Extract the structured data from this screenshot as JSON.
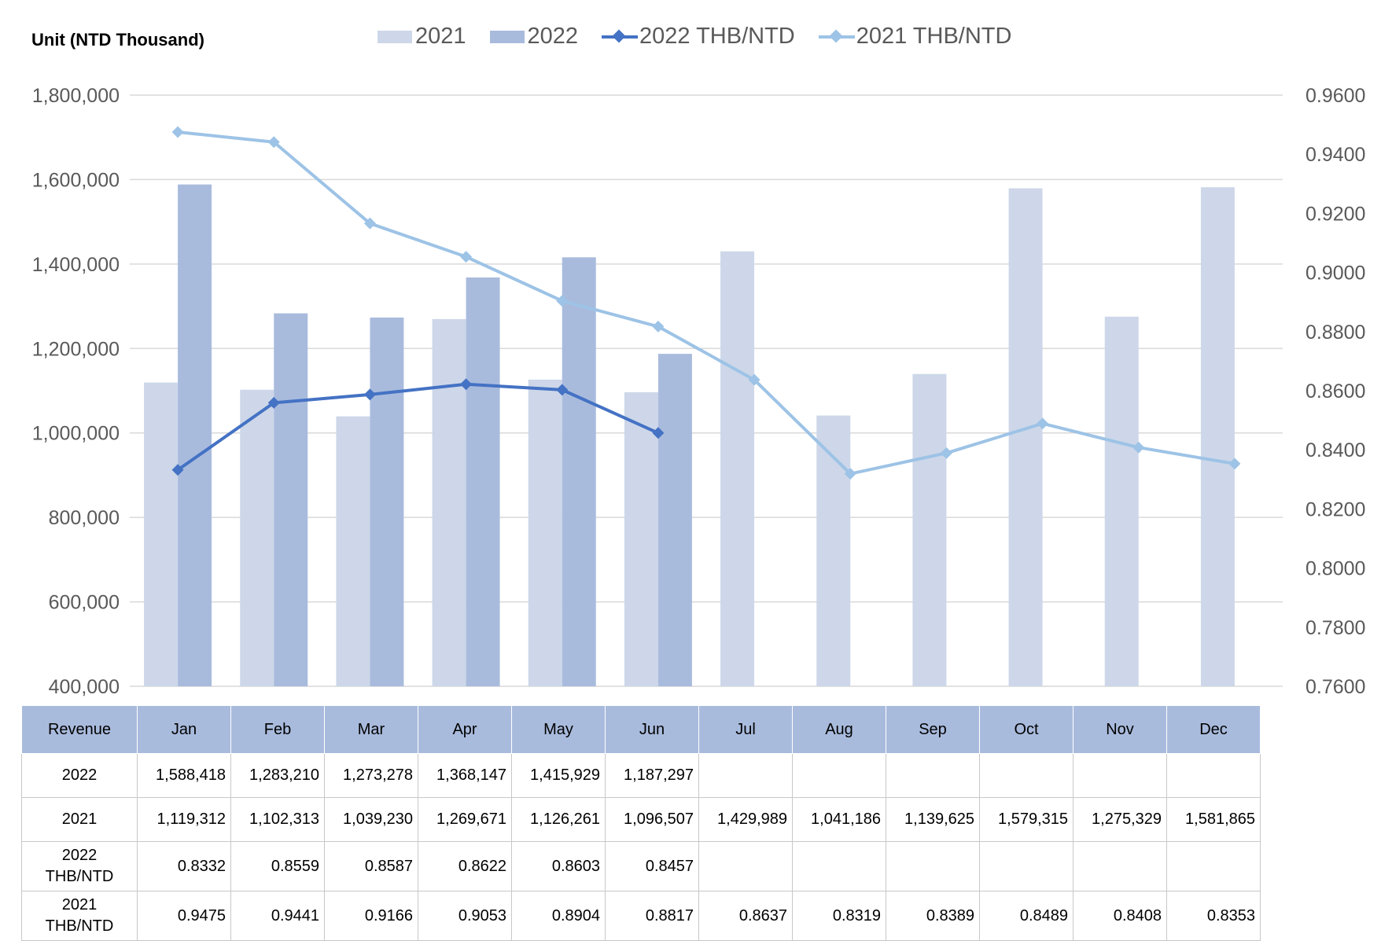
{
  "chart_data": {
    "type": "bar",
    "unit_label": "Unit (NTD  Thousand)",
    "categories": [
      "Jan",
      "Feb",
      "Mar",
      "Apr",
      "May",
      "Jun",
      "Jul",
      "Aug",
      "Sep",
      "Oct",
      "Nov",
      "Dec"
    ],
    "series": [
      {
        "name": "2021",
        "type": "bar",
        "axis": "left",
        "color": "#cdd7e9",
        "values": [
          1119312,
          1102313,
          1039230,
          1269671,
          1126261,
          1096507,
          1429989,
          1041186,
          1139625,
          1579315,
          1275329,
          1581865
        ]
      },
      {
        "name": "2022",
        "type": "bar",
        "axis": "left",
        "color": "#a9bbdd",
        "values": [
          1588418,
          1283210,
          1273278,
          1368147,
          1415929,
          1187297,
          null,
          null,
          null,
          null,
          null,
          null
        ]
      },
      {
        "name": "2022 THB/NTD",
        "type": "line",
        "axis": "right",
        "color": "#4472c4",
        "values": [
          0.8332,
          0.8559,
          0.8587,
          0.8622,
          0.8603,
          0.8457,
          null,
          null,
          null,
          null,
          null,
          null
        ]
      },
      {
        "name": "2021 THB/NTD",
        "type": "line",
        "axis": "right",
        "color": "#9dc3e6",
        "values": [
          0.9475,
          0.9441,
          0.9166,
          0.9053,
          0.8904,
          0.8817,
          0.8637,
          0.8319,
          0.8389,
          0.8489,
          0.8408,
          0.8353
        ]
      }
    ],
    "y_left": {
      "min": 400000,
      "max": 1800000,
      "ticks": [
        "400,000",
        "600,000",
        "800,000",
        "1,000,000",
        "1,200,000",
        "1,400,000",
        "1,600,000",
        "1,800,000"
      ]
    },
    "y_right": {
      "min": 0.76,
      "max": 0.96,
      "ticks": [
        "0.7600",
        "0.7800",
        "0.8000",
        "0.8200",
        "0.8400",
        "0.8600",
        "0.8800",
        "0.9000",
        "0.9200",
        "0.9400",
        "0.9600"
      ]
    },
    "grid": true,
    "legend_position": "top"
  },
  "table": {
    "header": [
      "Revenue",
      "Jan",
      "Feb",
      "Mar",
      "Apr",
      "May",
      "Jun",
      "Jul",
      "Aug",
      "Sep",
      "Oct",
      "Nov",
      "Dec"
    ],
    "rows": [
      {
        "label": [
          "2022"
        ],
        "cells": [
          "1,588,418",
          "1,283,210",
          "1,273,278",
          "1,368,147",
          "1,415,929",
          "1,187,297",
          "",
          "",
          "",
          "",
          "",
          ""
        ]
      },
      {
        "label": [
          "2021"
        ],
        "cells": [
          "1,119,312",
          "1,102,313",
          "1,039,230",
          "1,269,671",
          "1,126,261",
          "1,096,507",
          "1,429,989",
          "1,041,186",
          "1,139,625",
          "1,579,315",
          "1,275,329",
          "1,581,865"
        ]
      },
      {
        "label": [
          "2022",
          "THB/NTD"
        ],
        "cells": [
          "0.8332",
          "0.8559",
          "0.8587",
          "0.8622",
          "0.8603",
          "0.8457",
          "",
          "",
          "",
          "",
          "",
          ""
        ]
      },
      {
        "label": [
          "2021",
          "THB/NTD"
        ],
        "cells": [
          "0.9475",
          "0.9441",
          "0.9166",
          "0.9053",
          "0.8904",
          "0.8817",
          "0.8637",
          "0.8319",
          "0.8389",
          "0.8489",
          "0.8408",
          "0.8353"
        ]
      }
    ]
  }
}
